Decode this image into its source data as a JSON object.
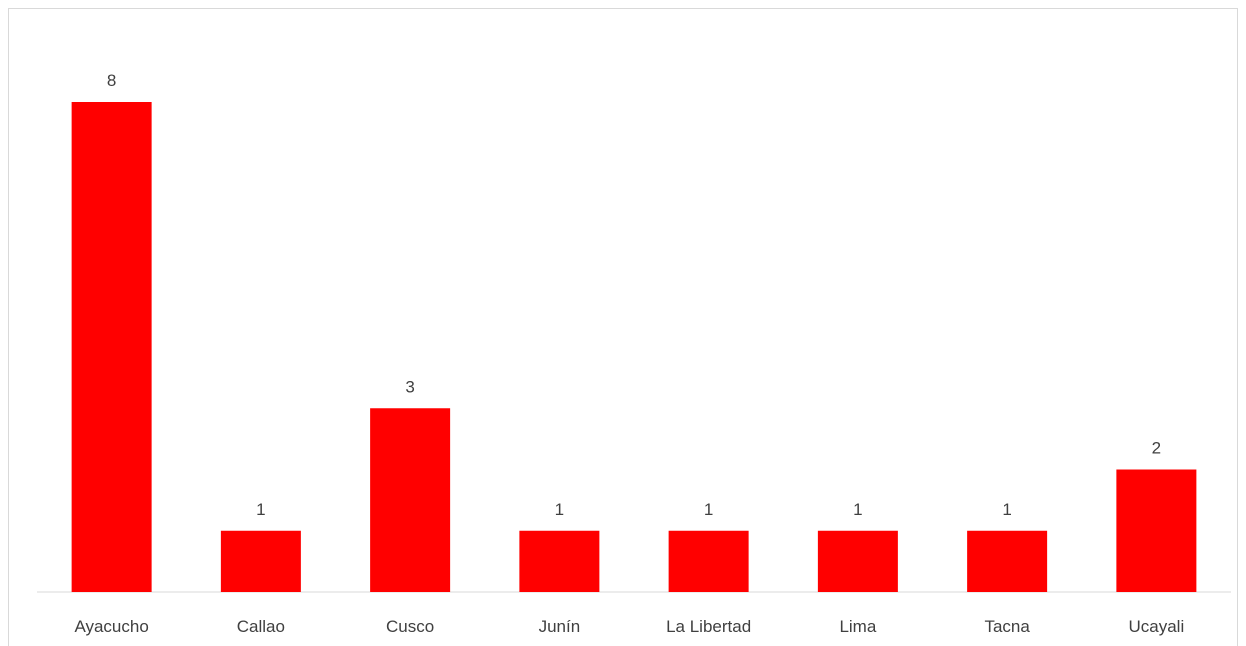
{
  "chart_data": {
    "type": "bar",
    "categories": [
      "Ayacucho",
      "Callao",
      "Cusco",
      "Junín",
      "La Libertad",
      "Lima",
      "Tacna",
      "Ucayali"
    ],
    "values": [
      8,
      1,
      3,
      1,
      1,
      1,
      1,
      2
    ],
    "title": "",
    "xlabel": "",
    "ylabel": "",
    "ylim": [
      0,
      8
    ],
    "grid": false,
    "legend": "none",
    "data_labels": true,
    "bar_color": "#ff0000"
  }
}
